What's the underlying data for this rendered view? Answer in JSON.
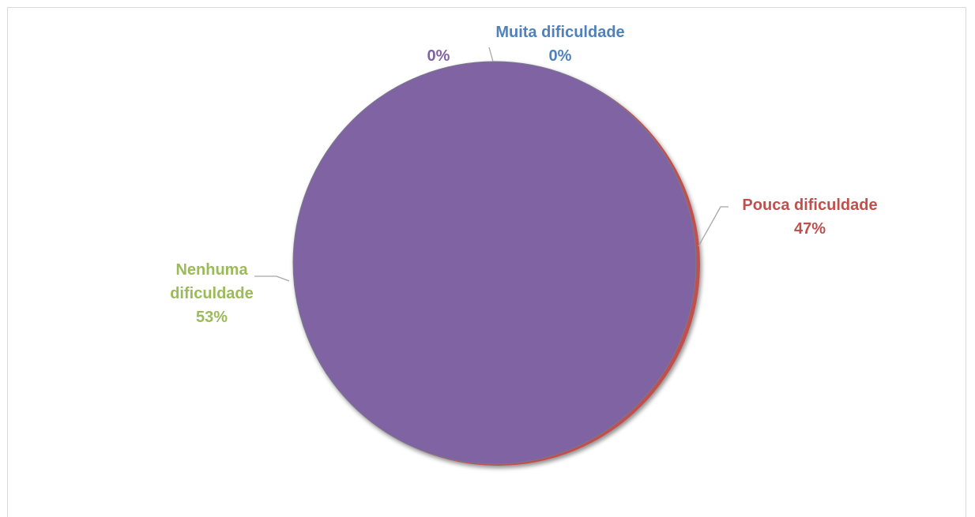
{
  "chart_data": {
    "type": "pie",
    "title": "",
    "slices": [
      {
        "name": "Muita dificuldade",
        "value": 0,
        "label": "0%",
        "color": "#4f81bd"
      },
      {
        "name": "Pouca dificuldade",
        "value": 47,
        "label": "47%",
        "color": "#c0504d"
      },
      {
        "name": "Nenhuma dificuldade",
        "value": 53,
        "label": "53%",
        "color": "#9bbb59"
      },
      {
        "name": "",
        "value": 0,
        "label": "0%",
        "color": "#8064a2"
      }
    ],
    "visual_note_fill": "#8064a2",
    "legend": "none"
  },
  "labels": {
    "muita_name": "Muita dificuldade",
    "muita_pct": "0%",
    "other_pct": "0%",
    "pouca_name": "Pouca dificuldade",
    "pouca_pct": "47%",
    "nenhuma_line1": "Nenhuma",
    "nenhuma_line2": "dificuldade",
    "nenhuma_pct": "53%"
  },
  "colors": {
    "muita": "#4f81bd",
    "pouca": "#c0504d",
    "nenhuma": "#9bbb59",
    "other": "#8064a2",
    "leader": "#a6a6a6",
    "pie_main": "#8064a2",
    "pie_edge": "#c0504d"
  }
}
